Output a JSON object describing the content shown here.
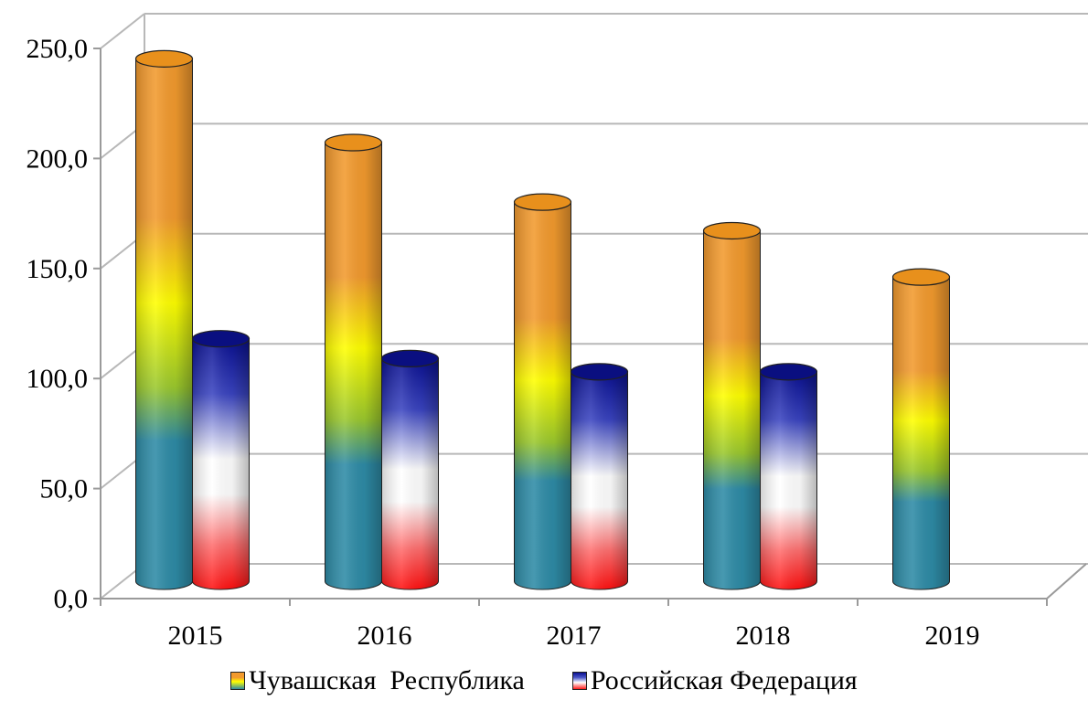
{
  "chart_data": {
    "type": "bar",
    "categories": [
      "2015",
      "2016",
      "2017",
      "2018",
      "2019"
    ],
    "series": [
      {
        "name": "Чувашская  Республика",
        "values": [
          237.0,
          199.0,
          172.0,
          159.0,
          138.0
        ]
      },
      {
        "name": "Российская Федерация",
        "values": [
          110.0,
          101.0,
          95.0,
          95.0,
          null
        ]
      }
    ],
    "yticks": [
      "0,0",
      "50,0",
      "100,0",
      "150,0",
      "200,0",
      "250,0"
    ],
    "ylim": [
      0,
      250
    ],
    "grid": true,
    "legend_position": "bottom",
    "colors": {
      "chuvash_top": "#f29a2e",
      "chuvash_mid": "#ffff00",
      "chuvash_bottom": "#2e8ba6",
      "russia_top": "#0a1090",
      "russia_mid": "#ffffff",
      "russia_bottom": "#ff1a1a"
    }
  }
}
